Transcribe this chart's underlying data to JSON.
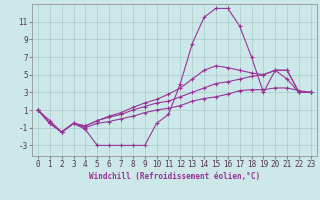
{
  "xlabel": "Windchill (Refroidissement éolien,°C)",
  "background_color": "#cce8e8",
  "grid_color": "#aacccc",
  "line_color": "#993399",
  "xlim": [
    -0.5,
    23.5
  ],
  "ylim": [
    -4.2,
    13.0
  ],
  "xticks": [
    0,
    1,
    2,
    3,
    4,
    5,
    6,
    7,
    8,
    9,
    10,
    11,
    12,
    13,
    14,
    15,
    16,
    17,
    18,
    19,
    20,
    21,
    22,
    23
  ],
  "yticks": [
    -3,
    -1,
    1,
    3,
    5,
    7,
    9,
    11
  ],
  "line1_y": [
    1.0,
    -0.5,
    -1.5,
    -0.5,
    -1.2,
    -3.0,
    -3.0,
    -3.0,
    -3.0,
    -3.0,
    -0.5,
    0.5,
    4.0,
    8.5,
    11.5,
    12.5,
    12.5,
    10.5,
    7.0,
    3.0,
    5.5,
    4.5,
    3.0,
    3.0
  ],
  "line2_y": [
    1.0,
    -0.5,
    -1.5,
    -0.5,
    -1.0,
    -0.5,
    -0.3,
    0.0,
    0.3,
    0.7,
    1.0,
    1.2,
    1.5,
    2.0,
    2.3,
    2.5,
    2.8,
    3.2,
    3.3,
    3.3,
    3.5,
    3.5,
    3.2,
    3.0
  ],
  "line3_y": [
    1.0,
    -0.5,
    -1.5,
    -0.5,
    -0.8,
    -0.2,
    0.2,
    0.5,
    1.0,
    1.4,
    1.8,
    2.0,
    2.5,
    3.0,
    3.5,
    4.0,
    4.2,
    4.5,
    4.8,
    5.0,
    5.5,
    5.5,
    3.0,
    3.0
  ],
  "line4_y": [
    1.0,
    -0.2,
    -1.5,
    -0.5,
    -0.8,
    -0.2,
    0.3,
    0.7,
    1.3,
    1.8,
    2.2,
    2.8,
    3.5,
    4.5,
    5.5,
    6.0,
    5.8,
    5.5,
    5.2,
    5.0,
    5.5,
    5.5,
    3.0,
    3.0
  ],
  "tick_fontsize": 5.5,
  "xlabel_fontsize": 5.5,
  "marker_size": 3,
  "line_width": 0.8
}
